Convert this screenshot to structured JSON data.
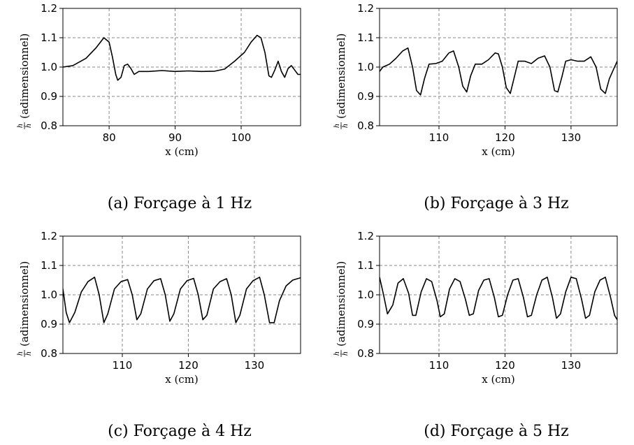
{
  "y_ratio_numerator": "h",
  "y_ratio_denominator": "h̄",
  "chart_data": [
    {
      "type": "line",
      "caption": "(a) Forçage à 1 Hz",
      "xlabel": "x (cm)",
      "ylabel": "(adimensionnel)",
      "xlim": [
        73,
        109
      ],
      "ylim": [
        0.8,
        1.2
      ],
      "xticks": [
        80,
        90,
        100
      ],
      "yticks": [
        0.8,
        0.9,
        1.0,
        1.1,
        1.2
      ],
      "grid": true,
      "series": [
        {
          "x": [
            73,
            74.5,
            76.5,
            78,
            79.2,
            80,
            80.5,
            81,
            81.3,
            81.8,
            82.3,
            82.8,
            83.3,
            83.8,
            84.5,
            86,
            88,
            90,
            92,
            94,
            96,
            97.5,
            99,
            100.5,
            101.5,
            102.4,
            103,
            103.6,
            104.2,
            104.6,
            105.1,
            105.6,
            106.1,
            106.6,
            107.1,
            107.6,
            108.1,
            108.6,
            109
          ],
          "y": [
            1.0,
            1.005,
            1.03,
            1.065,
            1.1,
            1.085,
            1.035,
            0.975,
            0.955,
            0.965,
            1.005,
            1.01,
            0.995,
            0.975,
            0.985,
            0.985,
            0.988,
            0.985,
            0.987,
            0.985,
            0.986,
            0.993,
            1.02,
            1.05,
            1.085,
            1.108,
            1.1,
            1.05,
            0.97,
            0.965,
            0.99,
            1.02,
            0.985,
            0.965,
            0.995,
            1.005,
            0.99,
            0.975,
            0.975
          ]
        }
      ]
    },
    {
      "type": "line",
      "caption": "(b) Forçage à 3 Hz",
      "xlabel": "x (cm)",
      "ylabel": "(adimensionnel)",
      "xlim": [
        101,
        137
      ],
      "ylim": [
        0.8,
        1.2
      ],
      "xticks": [
        110,
        120,
        130
      ],
      "yticks": [
        0.8,
        0.9,
        1.0,
        1.1,
        1.2
      ],
      "grid": true,
      "series": [
        {
          "x": [
            101,
            101.5,
            102.5,
            103.5,
            104.5,
            105.3,
            106,
            106.6,
            107.2,
            107.8,
            108.5,
            109.5,
            110.5,
            111.5,
            112.2,
            113,
            113.6,
            114.2,
            114.8,
            115.5,
            116.5,
            117.5,
            118.5,
            119,
            119.6,
            120.2,
            120.8,
            121.4,
            122,
            123,
            124,
            125,
            126,
            126.8,
            127.5,
            128,
            128.6,
            129.2,
            130,
            131,
            132,
            133,
            133.8,
            134.5,
            135.2,
            135.8,
            136.4,
            137
          ],
          "y": [
            0.985,
            1.0,
            1.01,
            1.03,
            1.055,
            1.065,
            1.0,
            0.92,
            0.905,
            0.96,
            1.01,
            1.012,
            1.02,
            1.048,
            1.055,
            1.0,
            0.935,
            0.915,
            0.97,
            1.01,
            1.01,
            1.025,
            1.048,
            1.045,
            1.0,
            0.93,
            0.91,
            0.965,
            1.02,
            1.02,
            1.012,
            1.03,
            1.038,
            1.0,
            0.92,
            0.915,
            0.965,
            1.02,
            1.025,
            1.02,
            1.02,
            1.035,
            1.0,
            0.925,
            0.91,
            0.96,
            0.99,
            1.02
          ]
        }
      ]
    },
    {
      "type": "line",
      "caption": "(c) Forçage à 4 Hz",
      "xlabel": "x (cm)",
      "ylabel": "(adimensionnel)",
      "xlim": [
        101,
        137
      ],
      "ylim": [
        0.8,
        1.2
      ],
      "xticks": [
        110,
        120,
        130
      ],
      "yticks": [
        0.8,
        0.9,
        1.0,
        1.1,
        1.2
      ],
      "grid": true,
      "series": [
        {
          "x": [
            101,
            101.5,
            102,
            102.8,
            103.8,
            104.8,
            105.8,
            106.5,
            107.2,
            107.8,
            108.8,
            109.8,
            110.8,
            111.5,
            112.2,
            112.8,
            113.8,
            114.8,
            115.8,
            116.5,
            117.2,
            117.8,
            118.8,
            119.8,
            120.8,
            121.5,
            122.2,
            122.8,
            123.8,
            124.8,
            125.8,
            126.5,
            127.2,
            127.8,
            128.8,
            129.8,
            130.8,
            131.5,
            132.3,
            133,
            133.8,
            134.8,
            135.8,
            137
          ],
          "y": [
            1.02,
            0.94,
            0.905,
            0.94,
            1.01,
            1.045,
            1.06,
            1.0,
            0.905,
            0.935,
            1.02,
            1.045,
            1.052,
            1.0,
            0.915,
            0.935,
            1.02,
            1.048,
            1.055,
            1.0,
            0.91,
            0.935,
            1.02,
            1.048,
            1.056,
            1.0,
            0.915,
            0.93,
            1.02,
            1.045,
            1.055,
            1.0,
            0.905,
            0.93,
            1.02,
            1.048,
            1.06,
            1.0,
            0.905,
            0.905,
            0.98,
            1.03,
            1.05,
            1.058
          ]
        }
      ]
    },
    {
      "type": "line",
      "caption": "(d) Forçage à 5 Hz",
      "xlabel": "x (cm)",
      "ylabel": "(adimensionnel)",
      "xlim": [
        101,
        137
      ],
      "ylim": [
        0.8,
        1.2
      ],
      "xticks": [
        110,
        120,
        130
      ],
      "yticks": [
        0.8,
        0.9,
        1.0,
        1.1,
        1.2
      ],
      "grid": true,
      "series": [
        {
          "x": [
            101,
            101.6,
            102.2,
            103,
            103.8,
            104.6,
            105.4,
            106,
            106.5,
            107.3,
            108.1,
            108.9,
            109.7,
            110.2,
            110.8,
            111.6,
            112.4,
            113.2,
            114,
            114.6,
            115.2,
            116,
            116.8,
            117.6,
            118.4,
            119,
            119.6,
            120.4,
            121.2,
            122,
            122.8,
            123.4,
            124,
            124.8,
            125.6,
            126.4,
            127.2,
            127.8,
            128.4,
            129.2,
            130,
            130.8,
            131.6,
            132.2,
            132.8,
            133.6,
            134.4,
            135.2,
            136,
            136.6,
            137
          ],
          "y": [
            1.06,
            1.0,
            0.935,
            0.965,
            1.04,
            1.055,
            1.005,
            0.93,
            0.93,
            1.01,
            1.055,
            1.045,
            0.98,
            0.925,
            0.935,
            1.02,
            1.055,
            1.045,
            0.985,
            0.93,
            0.935,
            1.015,
            1.05,
            1.055,
            0.99,
            0.925,
            0.93,
            1.0,
            1.05,
            1.055,
            0.99,
            0.925,
            0.93,
            1.0,
            1.05,
            1.06,
            0.99,
            0.92,
            0.935,
            1.01,
            1.06,
            1.055,
            0.985,
            0.92,
            0.93,
            1.01,
            1.05,
            1.06,
            0.99,
            0.93,
            0.915
          ]
        }
      ]
    }
  ]
}
